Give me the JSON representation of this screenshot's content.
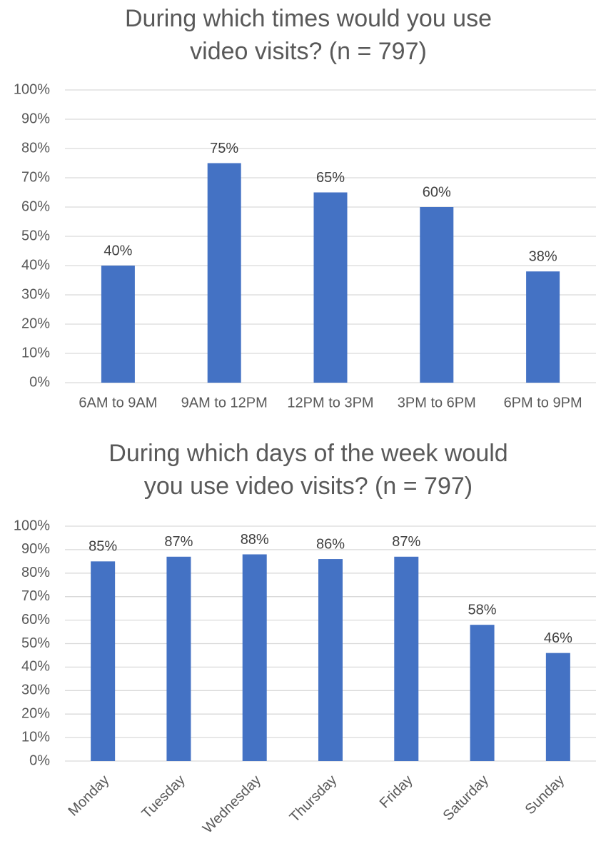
{
  "chart_data": [
    {
      "type": "bar",
      "title": [
        "During which times would you use",
        "video visits? (n = 797)"
      ],
      "categories": [
        "6AM to 9AM",
        "9AM to 12PM",
        "12PM to 3PM",
        "3PM to 6PM",
        "6PM to 9PM"
      ],
      "values": [
        40,
        75,
        65,
        60,
        38
      ],
      "value_labels": [
        "40%",
        "75%",
        "65%",
        "60%",
        "38%"
      ],
      "color": "#4472c4",
      "ylim": [
        0,
        100
      ],
      "yticks": [
        {
          "value": 0,
          "label": "0%"
        },
        {
          "value": 10,
          "label": "10%"
        },
        {
          "value": 20,
          "label": "20%"
        },
        {
          "value": 30,
          "label": "30%"
        },
        {
          "value": 40,
          "label": "40%"
        },
        {
          "value": 50,
          "label": "50%"
        },
        {
          "value": 60,
          "label": "60%"
        },
        {
          "value": 70,
          "label": "70%"
        },
        {
          "value": 80,
          "label": "80%"
        },
        {
          "value": 90,
          "label": "90%"
        },
        {
          "value": 100,
          "label": "100%"
        }
      ],
      "grid": true
    },
    {
      "type": "bar",
      "title": [
        "During which days of the week would",
        "you use video visits? (n = 797)"
      ],
      "categories": [
        "Monday",
        "Tuesday",
        "Wednesday",
        "Thursday",
        "Friday",
        "Saturday",
        "Sunday"
      ],
      "values": [
        85,
        87,
        88,
        86,
        87,
        58,
        46
      ],
      "value_labels": [
        "85%",
        "87%",
        "88%",
        "86%",
        "87%",
        "58%",
        "46%"
      ],
      "color": "#4472c4",
      "ylim": [
        0,
        100
      ],
      "yticks": [
        {
          "value": 0,
          "label": "0%"
        },
        {
          "value": 10,
          "label": "10%"
        },
        {
          "value": 20,
          "label": "20%"
        },
        {
          "value": 30,
          "label": "30%"
        },
        {
          "value": 40,
          "label": "40%"
        },
        {
          "value": 50,
          "label": "50%"
        },
        {
          "value": 60,
          "label": "60%"
        },
        {
          "value": 70,
          "label": "70%"
        },
        {
          "value": 80,
          "label": "80%"
        },
        {
          "value": 90,
          "label": "90%"
        },
        {
          "value": 100,
          "label": "100%"
        }
      ],
      "grid": true
    }
  ]
}
